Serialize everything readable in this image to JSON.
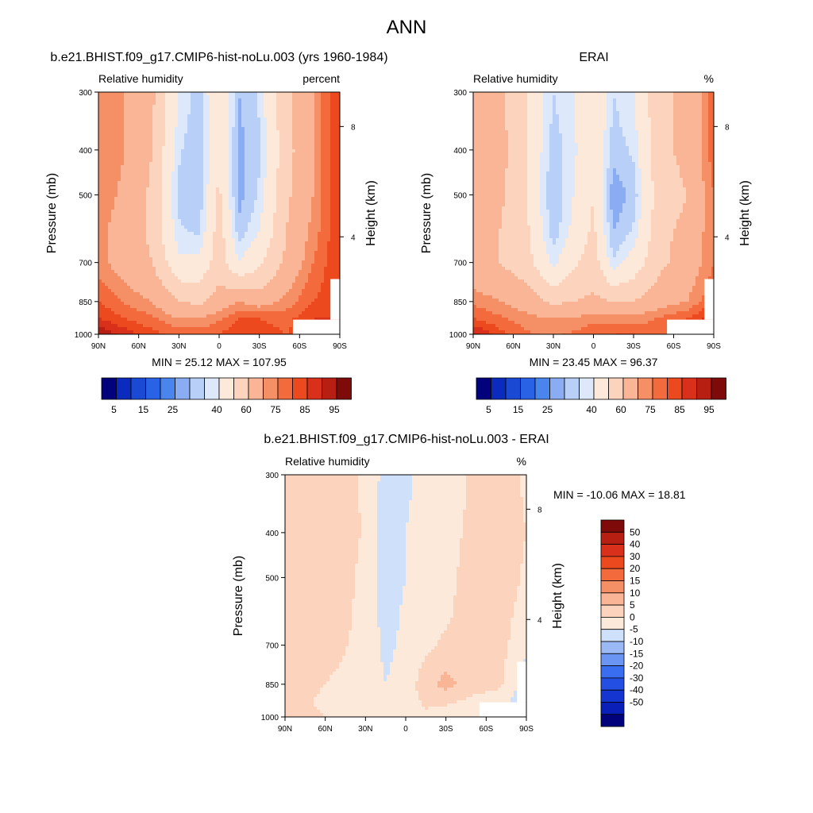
{
  "figure": {
    "title": "ANN"
  },
  "colors": {
    "abs": [
      "#02027d",
      "#0a2bbd",
      "#1a4ad4",
      "#2a62e6",
      "#4a85ee",
      "#8aacf2",
      "#b8cff7",
      "#dde9fb",
      "#fde9da",
      "#fcd3bd",
      "#f9b596",
      "#f58f65",
      "#f36b3d",
      "#ec4a1e",
      "#d8301a",
      "#b61f12",
      "#7f0a0a"
    ],
    "diff": [
      "#02027d",
      "#0a1fb8",
      "#1535d1",
      "#2350e3",
      "#3a6ef0",
      "#6a95f2",
      "#9bbaf5",
      "#cfe0fa",
      "#fde9da",
      "#fcd3bd",
      "#f9b596",
      "#f58f65",
      "#f36b3d",
      "#ec4a1e",
      "#d8301a",
      "#b61f12",
      "#7f0a0a"
    ]
  },
  "chart_data": [
    {
      "type": "heatmap",
      "panel": "model",
      "title": "b.e21.BHIST.f09_g17.CMIP6-hist-noLu.003 (yrs 1960-1984)",
      "left_label": "Relative humidity",
      "right_label": "percent",
      "ylabel": "Pressure (mb)",
      "y2label": "Height (km)",
      "x_ticks": [
        "90N",
        "60N",
        "30N",
        "0",
        "30S",
        "60S",
        "90S"
      ],
      "y_ticks": [
        "300",
        "400",
        "500",
        "700",
        "850",
        "1000"
      ],
      "y2_ticks": [
        "8",
        "4"
      ],
      "stats": "MIN =  25.12  MAX = 107.95",
      "colorbar_labels": [
        "5",
        "15",
        "25",
        "40",
        "60",
        "75",
        "85",
        "95"
      ],
      "x": [
        90,
        70,
        50,
        30,
        15,
        0,
        -15,
        -30,
        -50,
        -70,
        -90
      ],
      "y": [
        300,
        400,
        500,
        600,
        700,
        850,
        925,
        1000
      ],
      "z": [
        [
          75,
          70,
          62,
          40,
          32,
          50,
          30,
          36,
          58,
          70,
          85
        ],
        [
          75,
          70,
          60,
          36,
          30,
          50,
          28,
          34,
          56,
          70,
          85
        ],
        [
          74,
          68,
          58,
          33,
          31,
          52,
          28,
          36,
          58,
          70,
          85
        ],
        [
          72,
          66,
          58,
          36,
          34,
          55,
          32,
          40,
          60,
          72,
          85
        ],
        [
          72,
          66,
          60,
          42,
          42,
          56,
          40,
          48,
          62,
          75,
          85
        ],
        [
          80,
          74,
          70,
          60,
          58,
          64,
          70,
          66,
          72,
          80,
          85
        ],
        [
          85,
          80,
          76,
          70,
          70,
          74,
          80,
          80,
          78,
          85,
          85
        ],
        [
          95,
          88,
          82,
          78,
          78,
          80,
          85,
          83,
          80,
          86,
          86
        ]
      ]
    },
    {
      "type": "heatmap",
      "panel": "obs",
      "title": "ERAI",
      "left_label": "Relative humidity",
      "right_label": "%",
      "ylabel": "Pressure (mb)",
      "y2label": "Height (km)",
      "x_ticks": [
        "90N",
        "60N",
        "30N",
        "0",
        "30S",
        "60S",
        "90S"
      ],
      "y_ticks": [
        "300",
        "400",
        "500",
        "700",
        "850",
        "1000"
      ],
      "y2_ticks": [
        "8",
        "4"
      ],
      "stats": "MIN =  23.45  MAX =  96.37",
      "colorbar_labels": [
        "5",
        "15",
        "25",
        "40",
        "60",
        "75",
        "85",
        "95"
      ],
      "x": [
        90,
        70,
        50,
        30,
        15,
        0,
        -15,
        -30,
        -50,
        -70,
        -90
      ],
      "y": [
        300,
        400,
        500,
        600,
        700,
        850,
        925,
        1000
      ],
      "z": [
        [
          64,
          62,
          50,
          35,
          40,
          48,
          35,
          40,
          58,
          62,
          78
        ],
        [
          70,
          64,
          50,
          32,
          38,
          50,
          32,
          36,
          58,
          62,
          78
        ],
        [
          66,
          62,
          50,
          30,
          40,
          50,
          26,
          32,
          56,
          60,
          75
        ],
        [
          62,
          60,
          52,
          32,
          42,
          52,
          30,
          36,
          58,
          62,
          75
        ],
        [
          62,
          60,
          54,
          38,
          48,
          55,
          36,
          44,
          58,
          64,
          75
        ],
        [
          74,
          70,
          66,
          58,
          60,
          62,
          60,
          60,
          66,
          70,
          80
        ],
        [
          80,
          76,
          72,
          70,
          70,
          74,
          72,
          72,
          76,
          80,
          88
        ],
        [
          92,
          82,
          76,
          74,
          76,
          78,
          80,
          80,
          76,
          84,
          94
        ]
      ]
    },
    {
      "type": "heatmap",
      "panel": "diff",
      "title": "b.e21.BHIST.f09_g17.CMIP6-hist-noLu.003 - ERAI",
      "left_label": "Relative humidity",
      "right_label": "%",
      "ylabel": "Pressure (mb)",
      "y2label": "Height (km)",
      "x_ticks": [
        "90N",
        "60N",
        "30N",
        "0",
        "30S",
        "60S",
        "90S"
      ],
      "y_ticks": [
        "300",
        "400",
        "500",
        "700",
        "850",
        "1000"
      ],
      "y2_ticks": [
        "8",
        "4"
      ],
      "stats": "MIN = -10.06  MAX =  18.81",
      "colorbar_labels": [
        "50",
        "40",
        "30",
        "20",
        "15",
        "10",
        "5",
        "0",
        "-5",
        "-10",
        "-15",
        "-20",
        "-30",
        "-40",
        "-50"
      ],
      "x": [
        90,
        70,
        50,
        30,
        15,
        0,
        -15,
        -30,
        -50,
        -70,
        -90
      ],
      "y": [
        300,
        400,
        500,
        600,
        700,
        850,
        925,
        1000
      ],
      "z": [
        [
          6,
          7,
          8,
          4,
          -2,
          -1,
          2,
          1,
          6,
          8,
          4
        ],
        [
          6,
          7,
          9,
          4,
          -3,
          0,
          2,
          2,
          7,
          8,
          5
        ],
        [
          7,
          6,
          8,
          3,
          -3,
          0,
          2,
          3,
          8,
          8,
          4
        ],
        [
          7,
          6,
          7,
          3,
          -2,
          1,
          3,
          4,
          8,
          7,
          3
        ],
        [
          7,
          7,
          6,
          3,
          -1,
          1,
          4,
          6,
          9,
          7,
          1
        ],
        [
          7,
          6,
          4,
          2,
          0,
          2,
          8,
          12,
          7,
          6,
          -3
        ],
        [
          6,
          5,
          3,
          1,
          0,
          2,
          6,
          6,
          4,
          2,
          -3
        ],
        [
          6,
          6,
          4,
          2,
          1,
          2,
          4,
          2,
          1,
          1,
          -5
        ]
      ]
    }
  ]
}
